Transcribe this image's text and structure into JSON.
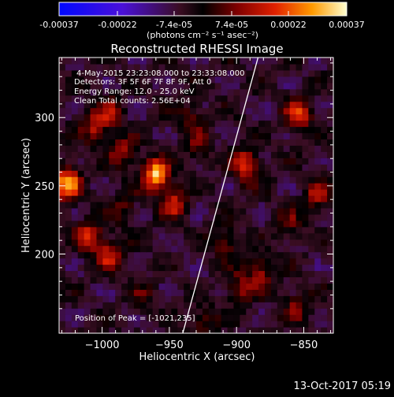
{
  "colorbar": {
    "tick_labels": [
      "-0.00037",
      "-0.00022",
      "-7.4e-05",
      "7.4e-05",
      "0.00022",
      "0.00037"
    ],
    "tick_values": [
      -0.00037,
      -0.00022,
      -7.4e-05,
      7.4e-05,
      0.00022,
      0.00037
    ],
    "units": "(photons cm⁻² s⁻¹ asec⁻²)",
    "min": -0.00037,
    "max": 0.00037
  },
  "chart_data": {
    "type": "heatmap",
    "title": "Reconstructed RHESSI Image",
    "xlabel": "Heliocentric X (arcsec)",
    "ylabel": "Heliocentric Y (arcsec)",
    "xlim": [
      -1032,
      -828
    ],
    "ylim": [
      142,
      344
    ],
    "xticks": [
      -1000,
      -950,
      -900,
      -850
    ],
    "xtick_labels": [
      "−1000",
      "−950",
      "−900",
      "−850"
    ],
    "yticks": [
      200,
      250,
      300
    ],
    "ytick_labels": [
      "200",
      "250",
      "300"
    ],
    "annotations": [
      "4-May-2015 23:23:08.000 to 23:33:08.000",
      "Detectors: 3F 5F 6F 7F 8F 9F, Att 0",
      "Energy Range: 12.0 - 25.0 keV",
      "Clean   Total counts: 2.56E+04"
    ],
    "peak_label": "Position of Peak = [-1021,235]",
    "peak": [
      -1021,
      235
    ],
    "limb_line": [
      [
        -940,
        142
      ],
      [
        -884,
        344
      ]
    ],
    "sources": [
      {
        "x": -960,
        "y": 258,
        "value": 0.00037
      },
      {
        "x": -1026,
        "y": 252,
        "value": 0.00034
      },
      {
        "x": -1010,
        "y": 213,
        "value": 0.00022
      },
      {
        "x": -995,
        "y": 200,
        "value": 0.0002
      },
      {
        "x": -1005,
        "y": 293,
        "value": 0.00018
      },
      {
        "x": -985,
        "y": 275,
        "value": 0.00015
      },
      {
        "x": -993,
        "y": 304,
        "value": 0.00014
      },
      {
        "x": -934,
        "y": 300,
        "value": 0.00012
      },
      {
        "x": -893,
        "y": 265,
        "value": 0.00026
      },
      {
        "x": -854,
        "y": 303,
        "value": 0.00024
      },
      {
        "x": -840,
        "y": 243,
        "value": 0.00016
      },
      {
        "x": -908,
        "y": 208,
        "value": 0.00013
      },
      {
        "x": -883,
        "y": 188,
        "value": 0.00018
      },
      {
        "x": -898,
        "y": 175,
        "value": 0.00014
      },
      {
        "x": -855,
        "y": 162,
        "value": 0.00013
      },
      {
        "x": -947,
        "y": 238,
        "value": 0.0002
      },
      {
        "x": -985,
        "y": 235,
        "value": 0.00012
      },
      {
        "x": -970,
        "y": 170,
        "value": 8e-05
      },
      {
        "x": -925,
        "y": 150,
        "value": 0.00012
      },
      {
        "x": -860,
        "y": 222,
        "value": 0.0001
      },
      {
        "x": -928,
        "y": 278,
        "value": 0.00011
      }
    ]
  },
  "footer": {
    "date": "13-Oct-2017 05:19"
  }
}
